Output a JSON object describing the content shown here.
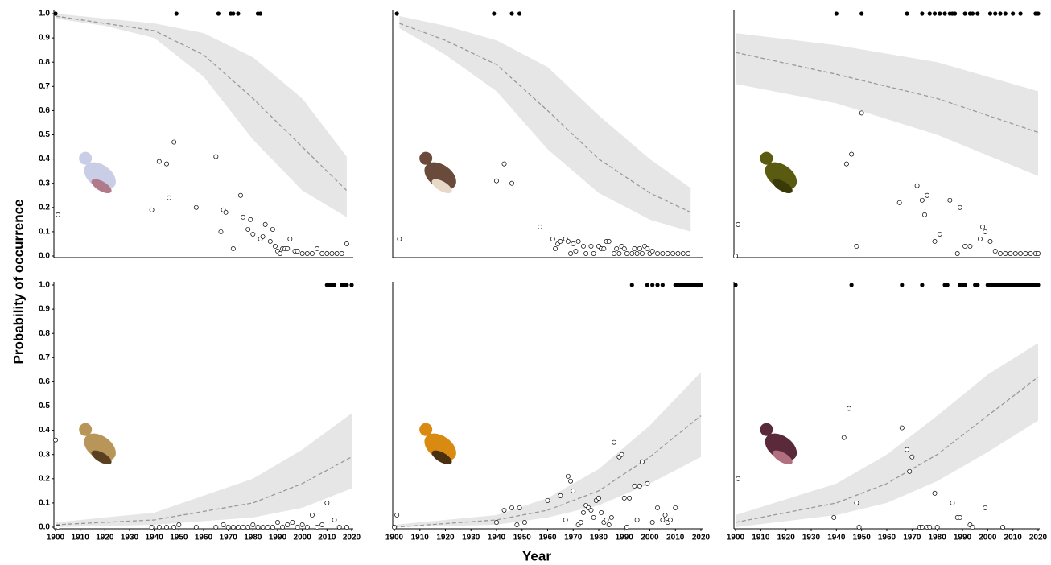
{
  "y_label": "Probability of occurrence",
  "x_label": "Year",
  "chart_data": [
    {
      "type": "scatter",
      "xlim": [
        1900,
        2020
      ],
      "ylim": [
        0,
        1
      ],
      "band_color": "#e6e6e6",
      "line_color": "#999999",
      "point_color": "#000000",
      "yticks": [
        {
          "value": 0,
          "label": "0.0"
        },
        0.1,
        0.2,
        0.3,
        0.4,
        0.5,
        0.6,
        0.7,
        0.8,
        0.9,
        {
          "value": 1,
          "label": "1.0"
        }
      ],
      "fit": {
        "x": [
          1900,
          1920,
          1940,
          1960,
          1980,
          2000,
          2018
        ],
        "y": [
          0.99,
          0.96,
          0.93,
          0.83,
          0.65,
          0.45,
          0.27
        ],
        "upper": [
          1.0,
          0.98,
          0.96,
          0.92,
          0.82,
          0.65,
          0.41
        ],
        "lower": [
          0.98,
          0.95,
          0.9,
          0.74,
          0.48,
          0.27,
          0.16
        ]
      },
      "detections": {
        "y": 1,
        "x": [
          1900,
          1949,
          1966,
          1971,
          1972,
          1974,
          1982,
          1983
        ]
      },
      "proportions": {
        "x": [
          1901,
          1939,
          1942,
          1945,
          1946,
          1948,
          1957,
          1965,
          1967,
          1968,
          1969,
          1972,
          1975,
          1976,
          1978,
          1979,
          1980,
          1983,
          1984,
          1985,
          1987,
          1988,
          1989,
          1990,
          1991,
          1992,
          1993,
          1994,
          1995,
          1997,
          1998,
          2000,
          2002,
          2004,
          2006,
          2008,
          2010,
          2012,
          2014,
          2016,
          2018
        ],
        "y": [
          0.17,
          0.19,
          0.39,
          0.38,
          0.24,
          0.47,
          0.2,
          0.41,
          0.1,
          0.19,
          0.18,
          0.03,
          0.25,
          0.16,
          0.11,
          0.15,
          0.09,
          0.07,
          0.08,
          0.13,
          0.06,
          0.11,
          0.04,
          0.02,
          0.01,
          0.03,
          0.03,
          0.03,
          0.07,
          0.02,
          0.02,
          0.01,
          0.01,
          0.01,
          0.03,
          0.01,
          0.01,
          0.01,
          0.01,
          0.01,
          0.05
        ]
      }
    },
    {
      "type": "scatter",
      "xlim": [
        1900,
        2020
      ],
      "ylim": [
        0,
        1
      ],
      "band_color": "#e6e6e6",
      "line_color": "#999999",
      "point_color": "#000000",
      "fit": {
        "x": [
          1902,
          1920,
          1940,
          1960,
          1980,
          2000,
          2016
        ],
        "y": [
          0.96,
          0.89,
          0.79,
          0.6,
          0.4,
          0.26,
          0.18
        ],
        "upper": [
          0.99,
          0.95,
          0.89,
          0.78,
          0.58,
          0.4,
          0.28
        ],
        "lower": [
          0.94,
          0.83,
          0.68,
          0.44,
          0.26,
          0.15,
          0.1
        ]
      },
      "detections": {
        "y": 1,
        "x": [
          1901,
          1939,
          1946,
          1949
        ]
      },
      "proportions": {
        "x": [
          1902,
          1940,
          1943,
          1946,
          1957,
          1962,
          1963,
          1964,
          1965,
          1967,
          1968,
          1969,
          1970,
          1971,
          1972,
          1974,
          1975,
          1977,
          1978,
          1980,
          1981,
          1982,
          1983,
          1984,
          1986,
          1987,
          1988,
          1989,
          1990,
          1991,
          1993,
          1994,
          1995,
          1996,
          1997,
          1998,
          1999,
          2000,
          2001,
          2003,
          2005,
          2007,
          2009,
          2011,
          2013,
          2015
        ],
        "y": [
          0.07,
          0.31,
          0.38,
          0.3,
          0.12,
          0.07,
          0.03,
          0.05,
          0.06,
          0.07,
          0.06,
          0.01,
          0.05,
          0.02,
          0.06,
          0.04,
          0.01,
          0.04,
          0.01,
          0.04,
          0.03,
          0.03,
          0.06,
          0.06,
          0.01,
          0.03,
          0.01,
          0.04,
          0.03,
          0.01,
          0.01,
          0.03,
          0.01,
          0.03,
          0.01,
          0.04,
          0.03,
          0.01,
          0.02,
          0.01,
          0.01,
          0.01,
          0.01,
          0.01,
          0.01,
          0.01
        ]
      }
    },
    {
      "type": "scatter",
      "xlim": [
        1900,
        2020
      ],
      "ylim": [
        0,
        1
      ],
      "band_color": "#e6e6e6",
      "line_color": "#999999",
      "point_color": "#000000",
      "fit": {
        "x": [
          1900,
          1940,
          1980,
          2020
        ],
        "y": [
          0.84,
          0.75,
          0.65,
          0.51
        ],
        "upper": [
          0.92,
          0.87,
          0.8,
          0.68
        ],
        "lower": [
          0.71,
          0.63,
          0.5,
          0.33
        ]
      },
      "detections": {
        "y": 1,
        "x": [
          1940,
          1950,
          1968,
          1974,
          1977,
          1979,
          1981,
          1983,
          1985,
          1986,
          1987,
          1991,
          1993,
          1994,
          1996,
          2001,
          2003,
          2005,
          2007,
          2010,
          2013,
          2019,
          2020
        ]
      },
      "proportions": {
        "x": [
          1900,
          1901,
          1944,
          1946,
          1948,
          1950,
          1965,
          1972,
          1974,
          1975,
          1976,
          1979,
          1981,
          1985,
          1988,
          1989,
          1991,
          1993,
          1997,
          1998,
          1999,
          2001,
          2003,
          2005,
          2007,
          2009,
          2011,
          2013,
          2015,
          2017,
          2019,
          2020
        ],
        "y": [
          0.0,
          0.13,
          0.38,
          0.42,
          0.04,
          0.59,
          0.22,
          0.29,
          0.23,
          0.17,
          0.25,
          0.06,
          0.09,
          0.23,
          0.01,
          0.2,
          0.04,
          0.04,
          0.07,
          0.12,
          0.1,
          0.06,
          0.02,
          0.01,
          0.01,
          0.01,
          0.01,
          0.01,
          0.01,
          0.01,
          0.01,
          0.01
        ]
      }
    },
    {
      "type": "scatter",
      "xlim": [
        1900,
        2020
      ],
      "ylim": [
        0,
        1
      ],
      "band_color": "#e6e6e6",
      "line_color": "#999999",
      "point_color": "#000000",
      "yticks": [
        {
          "value": 0,
          "label": "0.0"
        },
        0.1,
        0.2,
        0.3,
        0.4,
        0.5,
        0.6,
        0.7,
        0.8,
        0.9,
        {
          "value": 1,
          "label": "1.0"
        }
      ],
      "xticks": [
        1900,
        1910,
        1920,
        1930,
        1940,
        1950,
        1960,
        1970,
        1980,
        1990,
        2000,
        2010,
        2020
      ],
      "fit": {
        "x": [
          1900,
          1940,
          1980,
          2000,
          2020
        ],
        "y": [
          0.01,
          0.03,
          0.1,
          0.18,
          0.29
        ],
        "upper": [
          0.02,
          0.06,
          0.2,
          0.32,
          0.47
        ],
        "lower": [
          0.0,
          0.01,
          0.04,
          0.08,
          0.16
        ]
      },
      "detections": {
        "y": 1,
        "x": [
          2010,
          2011,
          2012,
          2013,
          2016,
          2017,
          2018,
          2020
        ]
      },
      "proportions": {
        "x": [
          1900,
          1901,
          1939,
          1942,
          1945,
          1948,
          1950,
          1957,
          1965,
          1968,
          1970,
          1972,
          1974,
          1976,
          1978,
          1980,
          1982,
          1984,
          1986,
          1988,
          1990,
          1992,
          1994,
          1996,
          1998,
          2000,
          2002,
          2004,
          2006,
          2008,
          2010,
          2013,
          2015,
          2018
        ],
        "y": [
          0.36,
          0.0,
          0.0,
          0.0,
          0.0,
          0.0,
          0.01,
          0.0,
          0.0,
          0.01,
          0.0,
          0.0,
          0.0,
          0.0,
          0.0,
          0.01,
          0.0,
          0.0,
          0.0,
          0.0,
          0.02,
          0.0,
          0.01,
          0.02,
          0.0,
          0.01,
          0.0,
          0.05,
          0.0,
          0.01,
          0.1,
          0.03,
          0.0,
          0.0
        ]
      }
    },
    {
      "type": "scatter",
      "xlim": [
        1900,
        2020
      ],
      "ylim": [
        0,
        1
      ],
      "band_color": "#e6e6e6",
      "line_color": "#999999",
      "point_color": "#000000",
      "xticks": [
        1900,
        1910,
        1920,
        1930,
        1940,
        1950,
        1960,
        1970,
        1980,
        1990,
        2000,
        2010,
        2020
      ],
      "fit": {
        "x": [
          1900,
          1940,
          1960,
          1980,
          2000,
          2020
        ],
        "y": [
          0.0,
          0.03,
          0.07,
          0.15,
          0.29,
          0.46
        ],
        "upper": [
          0.01,
          0.05,
          0.12,
          0.24,
          0.42,
          0.64
        ],
        "lower": [
          0.0,
          0.01,
          0.04,
          0.09,
          0.18,
          0.29
        ]
      },
      "detections": {
        "y": 1,
        "x": [
          1993,
          1999,
          2001,
          2003,
          2005,
          2010,
          2011,
          2012,
          2013,
          2014,
          2015,
          2016,
          2017,
          2018,
          2019,
          2020
        ]
      },
      "proportions": {
        "x": [
          1900,
          1901,
          1940,
          1943,
          1946,
          1948,
          1949,
          1951,
          1960,
          1965,
          1967,
          1968,
          1969,
          1970,
          1972,
          1973,
          1974,
          1975,
          1976,
          1977,
          1978,
          1979,
          1980,
          1981,
          1982,
          1983,
          1984,
          1985,
          1986,
          1988,
          1989,
          1990,
          1991,
          1992,
          1994,
          1995,
          1996,
          1997,
          1999,
          2001,
          2003,
          2005,
          2006,
          2007,
          2008,
          2010
        ],
        "y": [
          0.0,
          0.05,
          0.02,
          0.07,
          0.08,
          0.01,
          0.08,
          0.02,
          0.11,
          0.13,
          0.03,
          0.21,
          0.19,
          0.15,
          0.01,
          0.02,
          0.06,
          0.09,
          0.08,
          0.07,
          0.04,
          0.11,
          0.12,
          0.06,
          0.02,
          0.03,
          0.01,
          0.04,
          0.35,
          0.29,
          0.3,
          0.12,
          0.0,
          0.12,
          0.17,
          0.03,
          0.17,
          0.27,
          0.18,
          0.02,
          0.08,
          0.03,
          0.05,
          0.02,
          0.03,
          0.08
        ]
      }
    },
    {
      "type": "scatter",
      "xlim": [
        1900,
        2020
      ],
      "ylim": [
        0,
        1
      ],
      "band_color": "#e6e6e6",
      "line_color": "#999999",
      "point_color": "#000000",
      "xticks": [
        1900,
        1910,
        1920,
        1930,
        1940,
        1950,
        1960,
        1970,
        1980,
        1990,
        2000,
        2010,
        2020
      ],
      "fit": {
        "x": [
          1900,
          1940,
          1960,
          1980,
          2000,
          2020
        ],
        "y": [
          0.02,
          0.1,
          0.18,
          0.3,
          0.46,
          0.62
        ],
        "upper": [
          0.05,
          0.18,
          0.3,
          0.46,
          0.63,
          0.76
        ],
        "lower": [
          0.0,
          0.05,
          0.1,
          0.19,
          0.31,
          0.44
        ]
      },
      "detections": {
        "y": 1,
        "x": [
          1900,
          1946,
          1966,
          1974,
          1983,
          1984,
          1989,
          1990,
          1991,
          1995,
          1996,
          2000,
          2001,
          2002,
          2003,
          2004,
          2005,
          2006,
          2007,
          2008,
          2009,
          2010,
          2011,
          2012,
          2013,
          2014,
          2015,
          2016,
          2017,
          2018,
          2019,
          2020
        ]
      },
      "proportions": {
        "x": [
          1901,
          1939,
          1943,
          1945,
          1948,
          1949,
          1966,
          1968,
          1969,
          1970,
          1973,
          1974,
          1976,
          1977,
          1979,
          1980,
          1986,
          1988,
          1989,
          1993,
          1994,
          1999,
          2006
        ],
        "y": [
          0.2,
          0.04,
          0.37,
          0.49,
          0.1,
          0.0,
          0.41,
          0.32,
          0.23,
          0.29,
          0.0,
          0.0,
          0.0,
          0.0,
          0.14,
          0.0,
          0.1,
          0.04,
          0.04,
          0.01,
          0.0,
          0.08,
          0.0
        ]
      }
    }
  ]
}
